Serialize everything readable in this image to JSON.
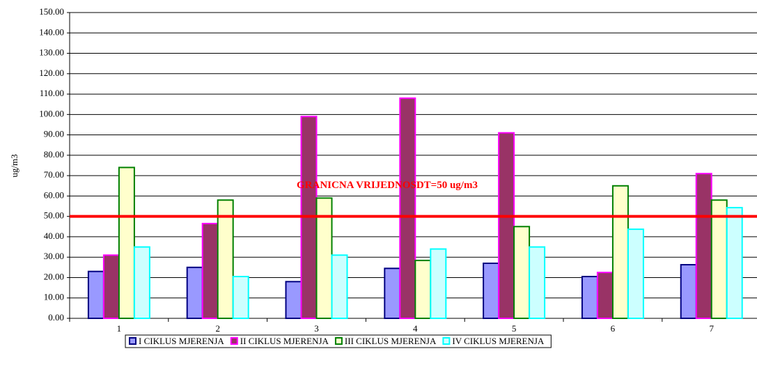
{
  "chart_data": {
    "type": "bar",
    "y_label": "ug/m3",
    "categories": [
      "1",
      "2",
      "3",
      "4",
      "5",
      "6",
      "7"
    ],
    "series": [
      {
        "name": "I CIKLUS MJERENJA",
        "color": "#9999ff",
        "border": "#000080",
        "values": [
          23,
          25,
          18,
          24.5,
          27,
          20.5,
          26.3
        ]
      },
      {
        "name": "II CIKLUS MJERENJA",
        "color": "#993366",
        "border": "#ff00ff",
        "values": [
          31,
          46.5,
          99,
          108,
          91,
          22.5,
          71
        ]
      },
      {
        "name": "III CIKLUS MJERENJA",
        "color": "#ffffcc",
        "border": "#008000",
        "values": [
          74,
          58,
          59,
          28.4,
          45,
          65,
          58
        ]
      },
      {
        "name": "IV CIKLUS MJERENJA",
        "color": "#ccffff",
        "border": "#00ffff",
        "values": [
          35,
          20.5,
          31,
          34,
          35,
          43.7,
          54.3
        ]
      }
    ],
    "limit_line": {
      "value": 50,
      "label": "GRANICNA VRIJEDNOSDT=50 ug/m3",
      "color": "#ff0000"
    },
    "ylim": [
      0,
      150
    ],
    "yticks": [
      {
        "value": 0,
        "label": "0.00"
      },
      {
        "value": 10,
        "label": "10.00"
      },
      {
        "value": 20,
        "label": "20.00"
      },
      {
        "value": 30,
        "label": "30.00"
      },
      {
        "value": 40,
        "label": "40.00"
      },
      {
        "value": 50,
        "label": "50.00"
      },
      {
        "value": 60,
        "label": "60.00"
      },
      {
        "value": 70,
        "label": "70.00"
      },
      {
        "value": 80,
        "label": "80.00"
      },
      {
        "value": 90,
        "label": "90.00"
      },
      {
        "value": 100,
        "label": "100.00"
      },
      {
        "value": 110,
        "label": "110.00"
      },
      {
        "value": 120,
        "label": "120.00"
      },
      {
        "value": 130,
        "label": "130.00"
      },
      {
        "value": 140,
        "label": "140.00"
      },
      {
        "value": 150,
        "label": "150.00"
      }
    ],
    "grid": true
  }
}
